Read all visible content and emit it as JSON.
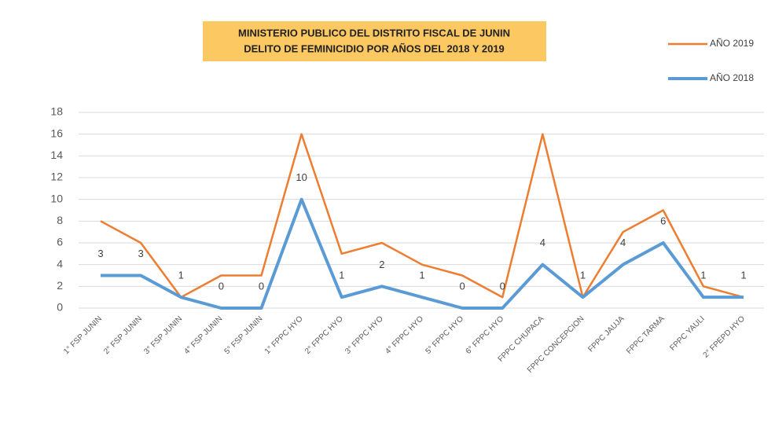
{
  "chart_data": {
    "type": "line",
    "title": [
      "MINISTERIO PUBLICO DEL DISTRITO FISCAL DE JUNIN",
      "DELITO DE FEMINICIDIO POR AÑOS  DEL 2018 Y 2019"
    ],
    "categories": [
      "1° FSP JUNIN",
      "2° FSP JUNIN",
      "3° FSP JUNIN",
      "4° FSP JUNIN",
      "5° FSP JUNIN",
      "1° FPPC HYO",
      "2° FPPC HYO",
      "3° FPPC HYO",
      "4° FPPC HYO",
      "5° FPPC HYO",
      "6° FPPC HYO",
      "FPPC CHUPACA",
      "FPPC CONCEPCION",
      "FPPC JAUJA",
      "FPPC TARMA",
      "FPPC YAULI",
      "2° FPEPD HYO"
    ],
    "series": [
      {
        "name": "AÑO 2019",
        "color": "#ed7d31",
        "values": [
          8,
          6,
          1,
          3,
          3,
          16,
          5,
          6,
          4,
          3,
          1,
          16,
          1,
          7,
          9,
          2,
          1
        ],
        "data_labels": false
      },
      {
        "name": "AÑO 2018",
        "color": "#5b9bd5",
        "values": [
          3,
          3,
          1,
          0,
          0,
          10,
          1,
          2,
          1,
          0,
          0,
          4,
          1,
          4,
          6,
          1,
          1
        ],
        "data_labels": true
      }
    ],
    "ylim": [
      0,
      18
    ],
    "yticks": [
      0,
      2,
      4,
      6,
      8,
      10,
      12,
      14,
      16,
      18
    ],
    "grid": true,
    "legend": "top-right"
  }
}
